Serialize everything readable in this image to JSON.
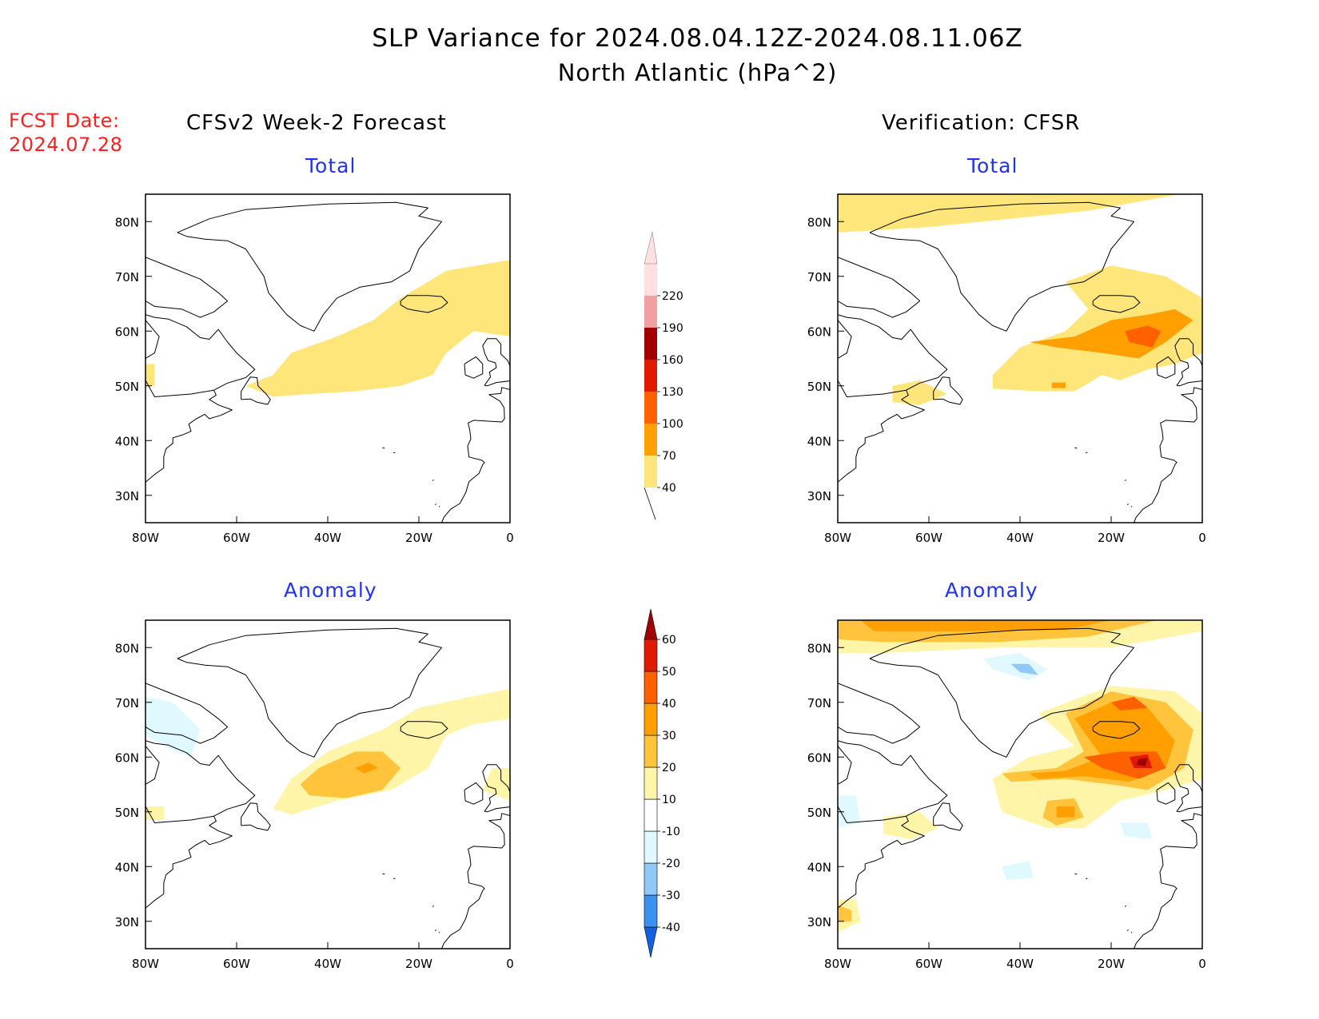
{
  "title": {
    "line1": "SLP Variance for 2024.08.04.12Z-2024.08.11.06Z",
    "line2": "North Atlantic (hPa^2)"
  },
  "forecast_date": {
    "label": "FCST Date:",
    "value": "2024.07.28"
  },
  "columns": {
    "left": "CFSv2 Week-2 Forecast",
    "right": "Verification: CFSR"
  },
  "panels": {
    "total": "Total",
    "anomaly": "Anomaly"
  },
  "axes": {
    "lon_ticks": [
      "80W",
      "60W",
      "40W",
      "20W",
      "0"
    ],
    "lat_ticks": [
      "80N",
      "70N",
      "60N",
      "50N",
      "40N",
      "30N"
    ],
    "lon_range": [
      -80,
      0
    ],
    "lat_range": [
      25,
      85
    ]
  },
  "legend_total": {
    "levels": [
      "40",
      "70",
      "100",
      "130",
      "160",
      "190",
      "220"
    ],
    "colors": [
      "#ffe67a",
      "#ffa000",
      "#ff6000",
      "#e01a00",
      "#a00000",
      "#f0a0a0",
      "#ffe0e0"
    ]
  },
  "legend_anomaly": {
    "levels": [
      "-40",
      "-30",
      "-20",
      "-10",
      "10",
      "20",
      "30",
      "40",
      "50",
      "60"
    ],
    "colors": [
      "#1060e0",
      "#3c90ee",
      "#90c8f8",
      "#e0f8ff",
      "#ffffff",
      "#fff5a8",
      "#ffc43c",
      "#ffa000",
      "#ff6000",
      "#e01a00",
      "#a00000"
    ]
  },
  "chart_data": [
    {
      "type": "heatmap",
      "panel": "forecast-total",
      "regions": [
        {
          "level": "40-70",
          "desc": "band from Newfoundland across the North Atlantic to the Norwegian Sea",
          "lon_range": [
            -60,
            0
          ],
          "lat_range": [
            48,
            72
          ]
        }
      ]
    },
    {
      "type": "heatmap",
      "panel": "verification-total",
      "regions": [
        {
          "level": "40-70",
          "desc": "broad area from Labrador Sea to Europe and the Arctic north of Greenland"
        },
        {
          "level": "70-100",
          "desc": "core south of Iceland near 57N 15W"
        },
        {
          "level": "100-130",
          "desc": "small maximum near 58N 12W"
        }
      ]
    },
    {
      "type": "heatmap",
      "panel": "forecast-anomaly",
      "regions": [
        {
          "level": "10-20",
          "desc": "band from Newfoundland to Norwegian Sea"
        },
        {
          "level": "20-30",
          "desc": "core near 58N 33W"
        },
        {
          "level": "-10 to -20",
          "desc": "weak negative over Baffin Island"
        }
      ]
    },
    {
      "type": "heatmap",
      "panel": "verification-anomaly",
      "regions": [
        {
          "level": "20-40",
          "desc": "positive band across Arctic north of Greenland"
        },
        {
          "level": "40-60",
          "desc": "maximum near 59N 12W"
        },
        {
          "level": "-10 to -30",
          "desc": "negative patch over central Greenland"
        }
      ]
    }
  ]
}
